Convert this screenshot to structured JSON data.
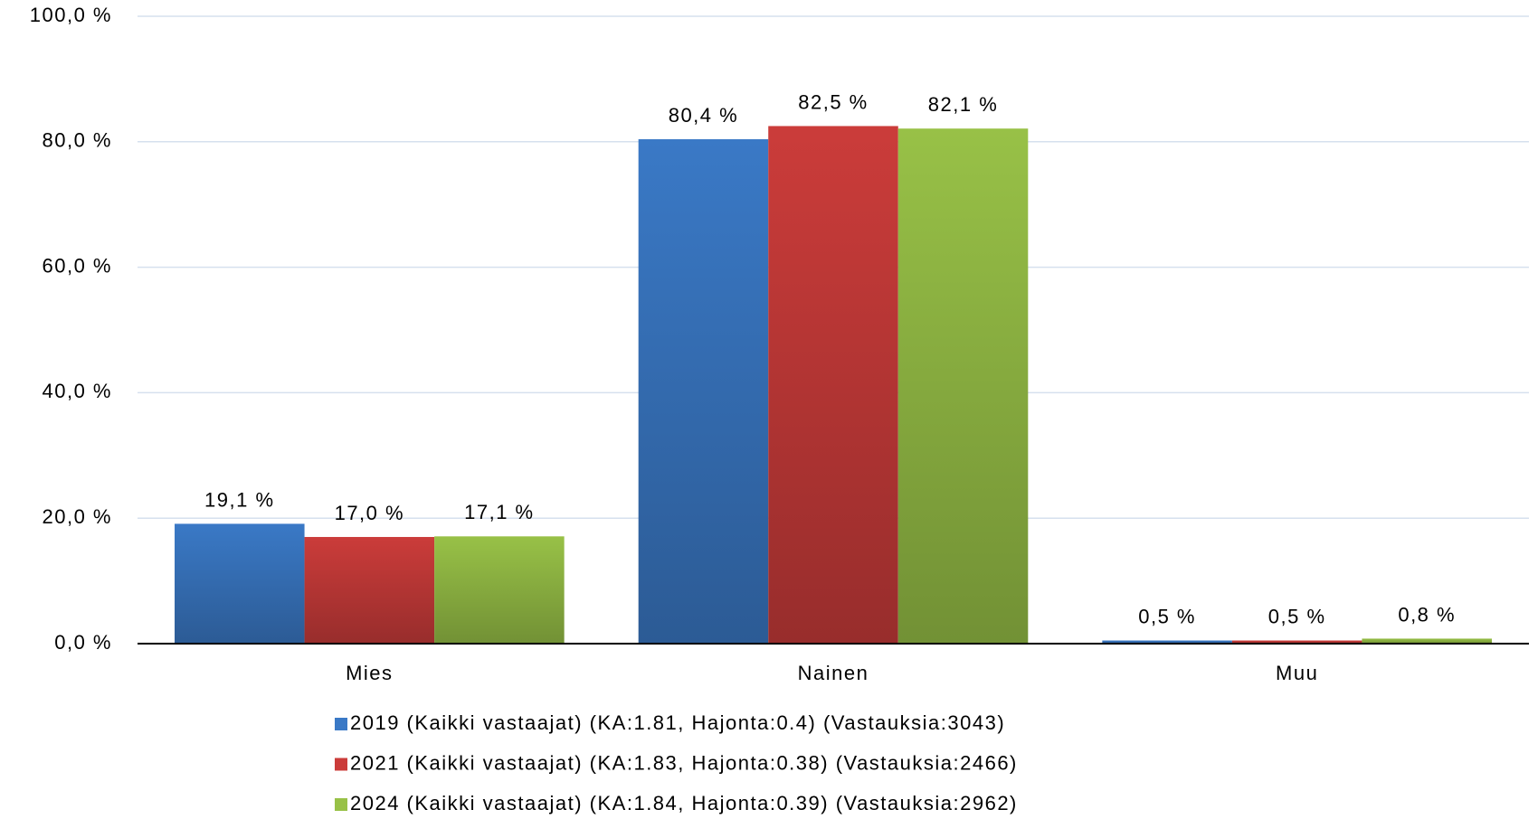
{
  "chart_data": {
    "type": "bar",
    "categories": [
      "Mies",
      "Nainen",
      "Muu"
    ],
    "series": [
      {
        "name": "2019 (Kaikki vastaajat) (KA:1.81, Hajonta:0.4) (Vastauksia:3043)",
        "color": "#3a79c6",
        "values": [
          19.1,
          80.4,
          0.5
        ],
        "value_labels": [
          "19,1 %",
          "80,4 %",
          "0,5 %"
        ]
      },
      {
        "name": "2021 (Kaikki vastaajat) (KA:1.83, Hajonta:0.38) (Vastauksia:2466)",
        "color": "#cb3c3a",
        "values": [
          17.0,
          82.5,
          0.5
        ],
        "value_labels": [
          "17,0 %",
          "82,5 %",
          "0,5 %"
        ]
      },
      {
        "name": "2024 (Kaikki vastaajat) (KA:1.84, Hajonta:0.39) (Vastauksia:2962)",
        "color": "#98c147",
        "values": [
          17.1,
          82.1,
          0.8
        ],
        "value_labels": [
          "17,1 %",
          "82,1 %",
          "0,8 %"
        ]
      }
    ],
    "ylim": [
      0,
      100
    ],
    "yticks": [
      {
        "value": 0,
        "label": "0,0 %"
      },
      {
        "value": 20,
        "label": "20,0 %"
      },
      {
        "value": 40,
        "label": "40,0 %"
      },
      {
        "value": 60,
        "label": "60,0 %"
      },
      {
        "value": 80,
        "label": "80,0 %"
      },
      {
        "value": 100,
        "label": "100,0 %"
      }
    ],
    "grid": true
  }
}
